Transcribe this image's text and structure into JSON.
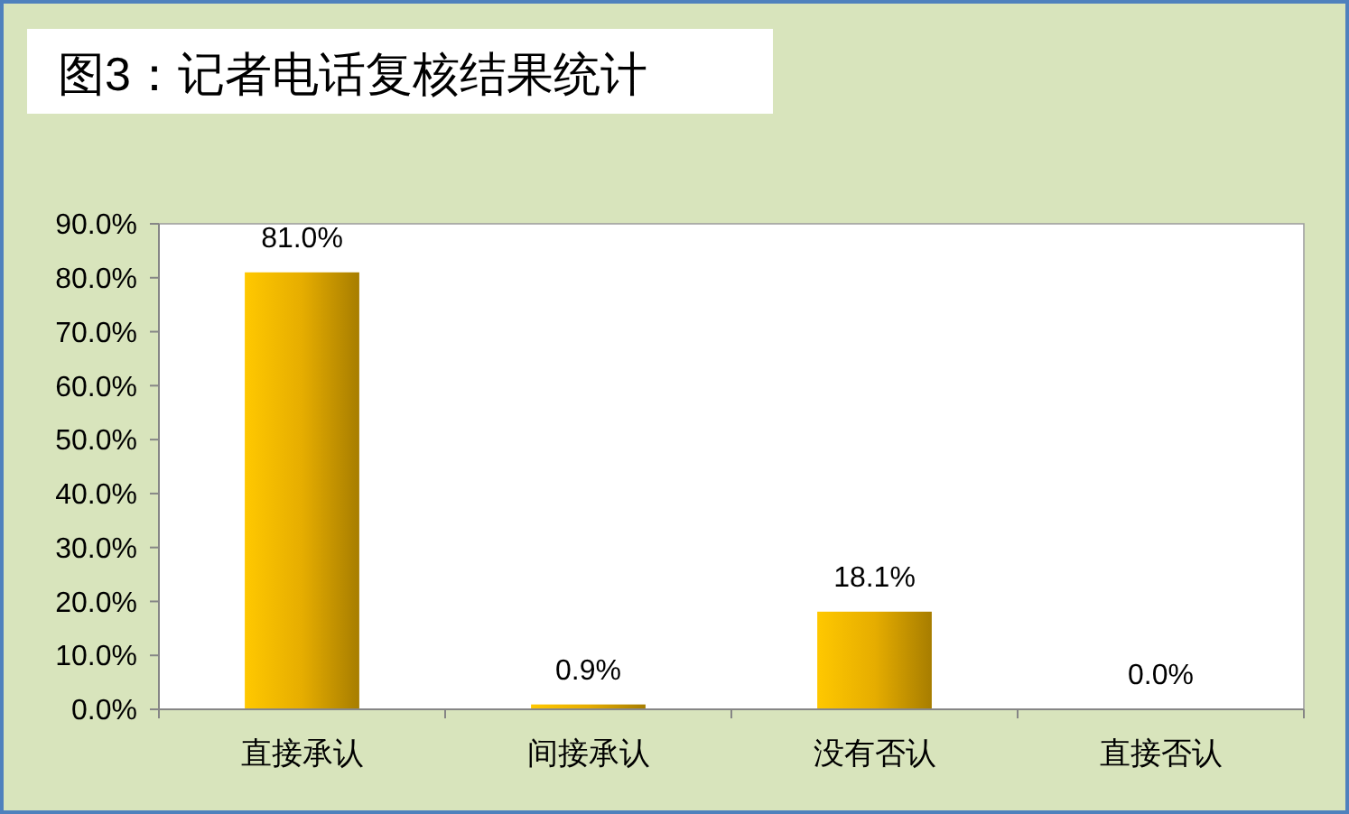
{
  "chart_data": {
    "type": "bar",
    "title": "图3：记者电话复核结果统计",
    "categories": [
      "直接承认",
      "间接承认",
      "没有否认",
      "直接否认"
    ],
    "values": [
      81.0,
      0.9,
      18.1,
      0.0
    ],
    "color": "#e6ad00",
    "value_labels": [
      "81.0%",
      "0.9%",
      "18.1%",
      "0.0%"
    ],
    "ylim": [
      0,
      90
    ],
    "yticks": [
      {
        "value": 0,
        "label": "0.0%"
      },
      {
        "value": 10,
        "label": "10.0%"
      },
      {
        "value": 20,
        "label": "20.0%"
      },
      {
        "value": 30,
        "label": "30.0%"
      },
      {
        "value": 40,
        "label": "40.0%"
      },
      {
        "value": 50,
        "label": "50.0%"
      },
      {
        "value": 60,
        "label": "60.0%"
      },
      {
        "value": 70,
        "label": "70.0%"
      },
      {
        "value": 80,
        "label": "80.0%"
      },
      {
        "value": 90,
        "label": "90.0%"
      }
    ],
    "grid": false
  }
}
